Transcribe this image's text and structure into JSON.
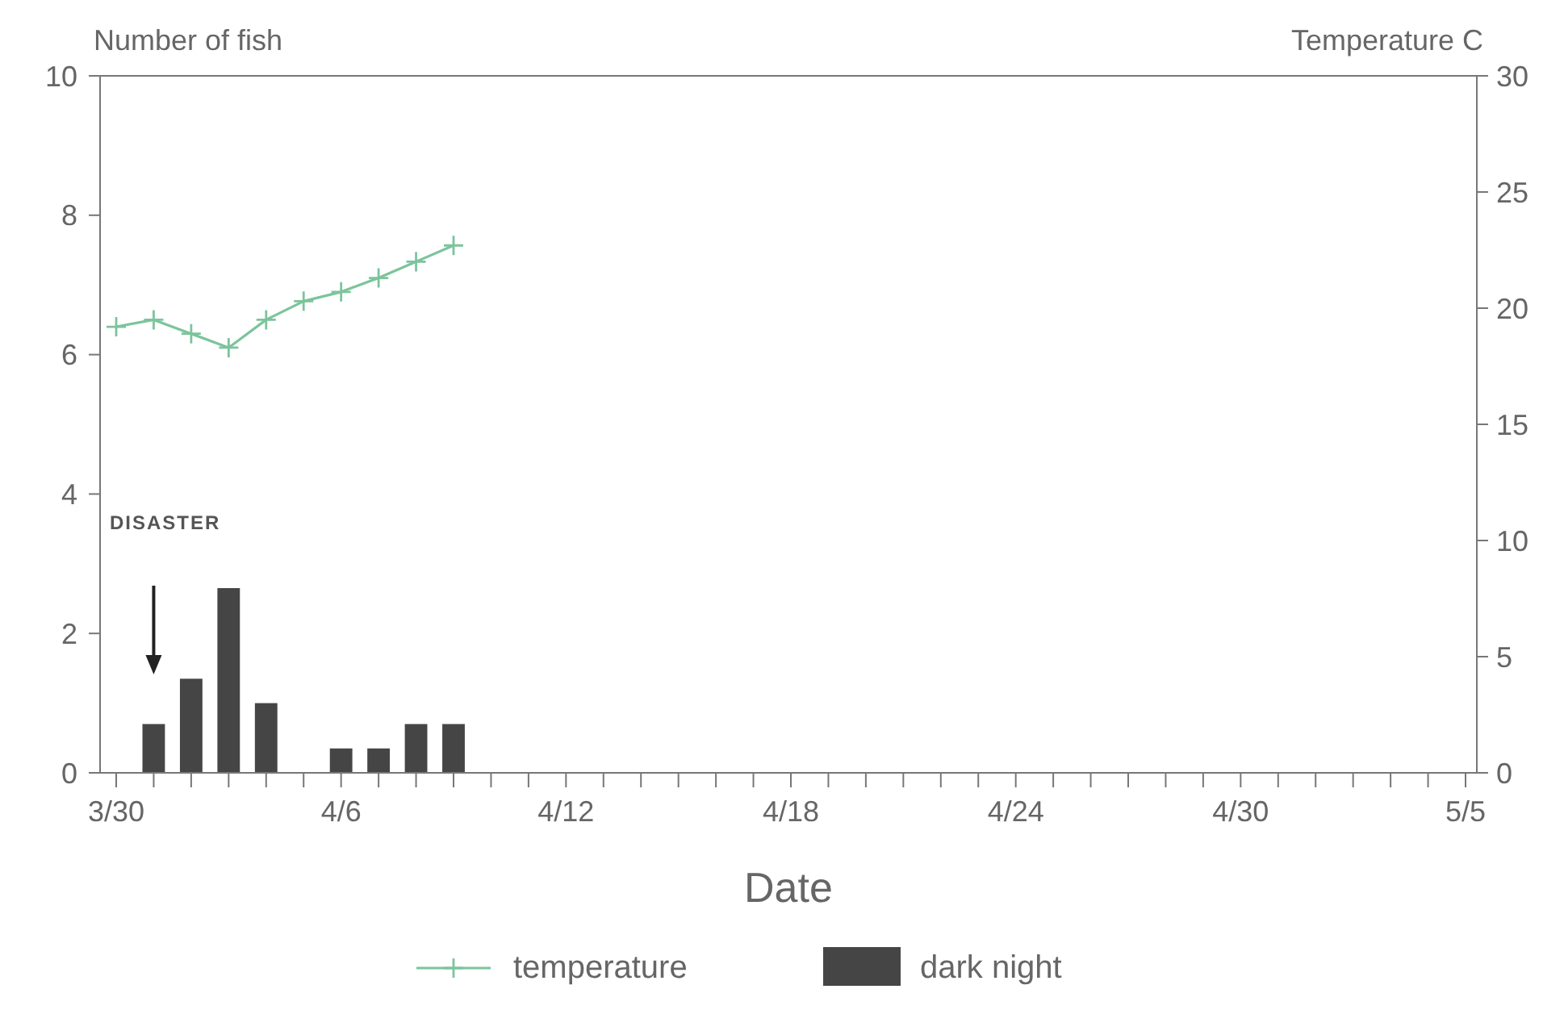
{
  "chart_data": {
    "type": "bar",
    "xlabel": "Date",
    "ylabel": "Number of fish",
    "y2label": "Temperature  C",
    "categories": [
      "3/30",
      null,
      null,
      null,
      null,
      null,
      "4/6",
      null,
      null,
      null,
      null,
      null,
      "4/12",
      null,
      null,
      null,
      null,
      null,
      "4/18",
      null,
      null,
      null,
      null,
      null,
      "4/24",
      null,
      null,
      null,
      null,
      null,
      "4/30",
      null,
      null,
      null,
      null,
      null,
      "5/5"
    ],
    "series": [
      {
        "name": "temperature",
        "type": "line",
        "axis": "y2",
        "color": "#7cc49c",
        "marker": "cross",
        "line_style": "solid",
        "values": [
          19.2,
          19.5,
          18.9,
          18.3,
          19.5,
          20.3,
          20.7,
          21.3,
          22.0,
          22.7,
          null,
          null,
          null,
          null,
          null,
          null,
          null,
          null,
          null,
          null,
          null,
          null,
          null,
          null,
          null,
          null,
          null,
          null,
          null,
          null,
          null,
          null,
          null,
          null,
          null,
          null,
          null
        ]
      },
      {
        "name": "dark night",
        "type": "bar",
        "color": "#454545",
        "values": [
          null,
          0.7,
          1.35,
          2.65,
          1.0,
          null,
          0.35,
          0.35,
          0.7,
          0.7,
          null,
          null,
          null,
          null,
          null,
          null,
          null,
          null,
          null,
          null,
          null,
          null,
          null,
          null,
          null,
          null,
          null,
          null,
          null,
          null,
          null,
          null,
          null,
          null,
          null,
          null,
          null
        ]
      }
    ],
    "ylim": [
      0,
      10
    ],
    "yticks": [
      0,
      2,
      4,
      6,
      8,
      10
    ],
    "y2lim": [
      0,
      30
    ],
    "y2ticks": [
      0,
      5,
      10,
      15,
      20,
      25,
      30
    ],
    "annotations": [
      "DISASTER"
    ],
    "grid": false,
    "legend": "bottom"
  }
}
